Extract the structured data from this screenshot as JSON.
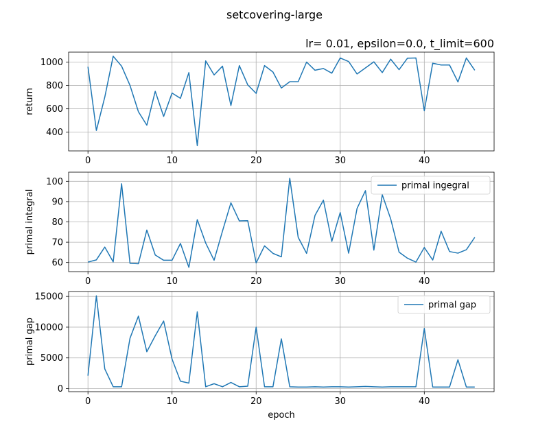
{
  "figure": {
    "suptitle": "setcovering-large",
    "subtitle": "lr= 0.01, epsilon=0.0, t_limit=600"
  },
  "chart_data": [
    {
      "type": "line",
      "ylabel": "return",
      "xlabel": "",
      "xlim": [
        -2.3,
        48.3
      ],
      "ylim": [
        240,
        1085
      ],
      "xticks": [
        0,
        10,
        20,
        30,
        40
      ],
      "yticks": [
        400,
        600,
        800,
        1000
      ],
      "grid": true,
      "legend": null,
      "series": [
        {
          "name": "",
          "color": "#1f77b4",
          "x": [
            0,
            1,
            2,
            3,
            4,
            5,
            6,
            7,
            8,
            9,
            10,
            11,
            12,
            13,
            14,
            15,
            16,
            17,
            18,
            19,
            20,
            21,
            22,
            23,
            24,
            25,
            26,
            27,
            28,
            29,
            30,
            31,
            32,
            33,
            34,
            35,
            36,
            37,
            38,
            39,
            40,
            41,
            42,
            43,
            44,
            45,
            46
          ],
          "values": [
            960,
            415,
            700,
            1050,
            965,
            800,
            575,
            460,
            750,
            535,
            735,
            690,
            910,
            285,
            1010,
            890,
            965,
            628,
            970,
            805,
            732,
            970,
            915,
            778,
            832,
            832,
            1000,
            930,
            945,
            905,
            1035,
            1005,
            898,
            950,
            1002,
            910,
            1025,
            935,
            1033,
            1035,
            583,
            990,
            975,
            975,
            830,
            1035,
            930
          ]
        }
      ]
    },
    {
      "type": "line",
      "ylabel": "primal integral",
      "xlabel": "",
      "xlim": [
        -2.3,
        48.3
      ],
      "ylim": [
        55.5,
        104.5
      ],
      "xticks": [
        0,
        10,
        20,
        30,
        40
      ],
      "yticks": [
        60,
        70,
        80,
        90,
        100
      ],
      "grid": true,
      "legend": "top-right",
      "series": [
        {
          "name": "primal ingegral",
          "color": "#1f77b4",
          "x": [
            0,
            1,
            2,
            3,
            4,
            5,
            6,
            7,
            8,
            9,
            10,
            11,
            12,
            13,
            14,
            15,
            16,
            17,
            18,
            19,
            20,
            21,
            22,
            23,
            24,
            25,
            26,
            27,
            28,
            29,
            30,
            31,
            32,
            33,
            34,
            35,
            36,
            37,
            38,
            39,
            40,
            41,
            42,
            43,
            44,
            45,
            46
          ],
          "values": [
            60.2,
            61.3,
            67.6,
            60.3,
            98.8,
            59.6,
            59.4,
            76.0,
            63.7,
            61.1,
            61.1,
            69.4,
            57.6,
            81.1,
            69.6,
            61.1,
            75.5,
            89.4,
            80.5,
            80.6,
            59.8,
            68.2,
            64.5,
            62.8,
            101.5,
            72.4,
            64.5,
            83.2,
            90.7,
            70.4,
            84.6,
            64.6,
            86.6,
            95.4,
            66.1,
            93.4,
            81.5,
            65.1,
            62.1,
            60.2,
            67.4,
            61.2,
            75.4,
            65.4,
            64.6,
            66.3,
            72.4
          ]
        }
      ]
    },
    {
      "type": "line",
      "ylabel": "primal gap",
      "xlabel": "epoch",
      "xlim": [
        -2.3,
        48.3
      ],
      "ylim": [
        -500,
        15800
      ],
      "xticks": [
        0,
        10,
        20,
        30,
        40
      ],
      "yticks": [
        0,
        5000,
        10000,
        15000
      ],
      "grid": true,
      "legend": "top-right",
      "series": [
        {
          "name": "primal gap",
          "color": "#1f77b4",
          "x": [
            0,
            1,
            2,
            3,
            4,
            5,
            6,
            7,
            8,
            9,
            10,
            11,
            12,
            13,
            14,
            15,
            16,
            17,
            18,
            19,
            20,
            21,
            22,
            23,
            24,
            25,
            26,
            27,
            28,
            29,
            30,
            31,
            32,
            33,
            34,
            35,
            36,
            37,
            38,
            39,
            40,
            41,
            42,
            43,
            44,
            45,
            46
          ],
          "values": [
            2100,
            15100,
            3200,
            300,
            300,
            8200,
            11800,
            6000,
            8600,
            11000,
            4800,
            1200,
            900,
            12500,
            300,
            800,
            300,
            1000,
            300,
            400,
            10000,
            300,
            300,
            8100,
            300,
            250,
            250,
            300,
            250,
            300,
            300,
            250,
            300,
            350,
            300,
            250,
            300,
            300,
            300,
            300,
            9800,
            250,
            250,
            250,
            4700,
            250,
            250
          ]
        }
      ]
    }
  ]
}
